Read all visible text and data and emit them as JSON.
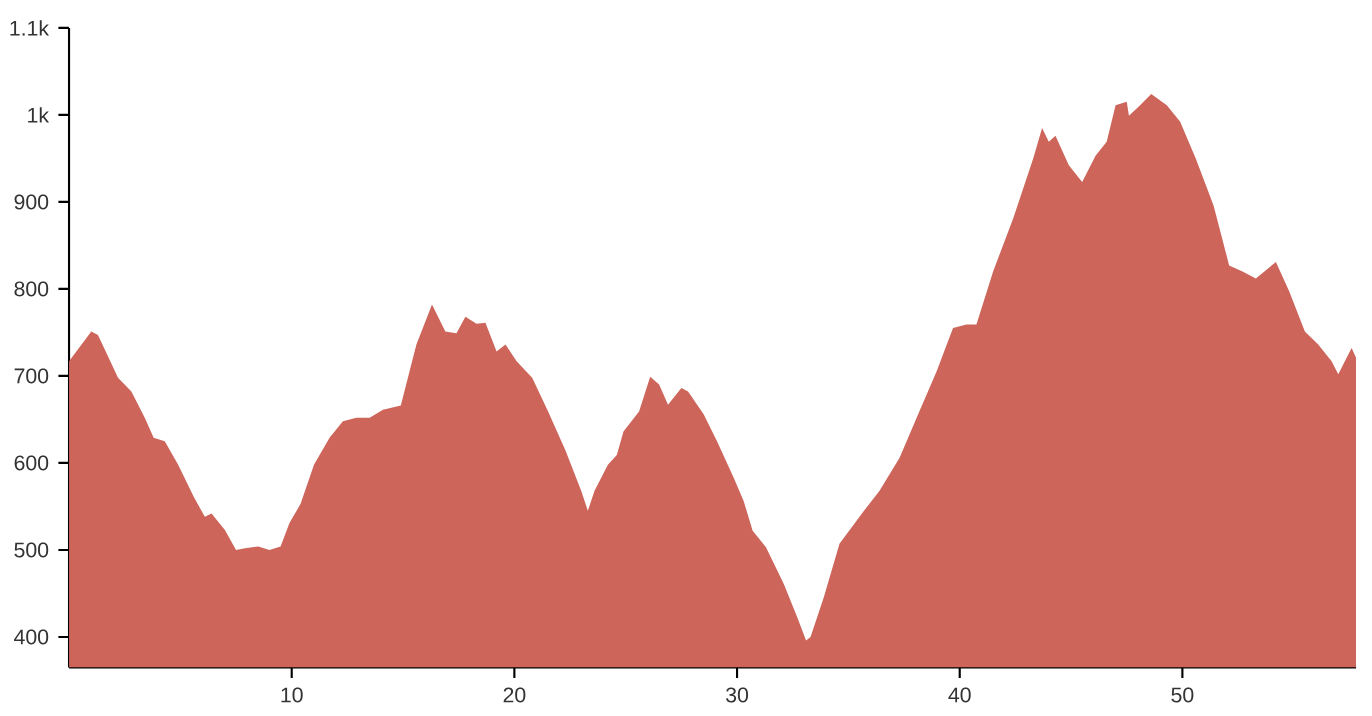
{
  "chart_data": {
    "type": "area",
    "color": "#cd655b",
    "xlim": [
      0,
      57.8
    ],
    "xticks": [
      10,
      20,
      30,
      40,
      50
    ],
    "ylim": [
      365,
      1100
    ],
    "yticks": [
      400,
      500,
      600,
      700,
      800,
      900,
      {
        "value": 1000,
        "label": "1k"
      },
      {
        "value": 1100,
        "label": "1.1k"
      }
    ],
    "grid": false,
    "x": [
      0,
      1.0,
      1.3,
      2.2,
      2.8,
      3.4,
      3.8,
      4.3,
      4.9,
      5.6,
      6.1,
      6.4,
      7.0,
      7.5,
      7.9,
      8.5,
      9.0,
      9.5,
      9.9,
      10.4,
      11.0,
      11.7,
      12.3,
      12.9,
      13.5,
      14.1,
      14.9,
      15.6,
      16.3,
      16.9,
      17.4,
      17.8,
      18.3,
      18.7,
      19.2,
      19.6,
      20.1,
      20.8,
      21.5,
      22.3,
      23.0,
      23.3,
      23.6,
      24.2,
      24.6,
      24.9,
      25.6,
      26.1,
      26.5,
      26.9,
      27.5,
      27.8,
      28.5,
      29.1,
      29.85,
      30.3,
      30.7,
      31.3,
      32.1,
      32.7,
      33.1,
      33.3,
      33.9,
      34.6,
      35.7,
      36.4,
      37.3,
      38.2,
      38.96,
      39.7,
      40.3,
      40.75,
      41.5,
      42.4,
      43.3,
      43.7,
      44.0,
      44.3,
      44.9,
      45.5,
      46.1,
      46.6,
      47.0,
      47.5,
      47.6,
      48.1,
      48.6,
      49.3,
      49.9,
      50.6,
      51.4,
      52.1,
      52.7,
      53.3,
      54.2,
      54.8,
      55.5,
      56.1,
      56.7,
      57.0,
      57.6,
      57.8
    ],
    "values": [
      717,
      751,
      747,
      698,
      682,
      652,
      629,
      625,
      598,
      561,
      538,
      542,
      523,
      500,
      502,
      504,
      500,
      504,
      531,
      553,
      598,
      629,
      648,
      652,
      652,
      661,
      666,
      736,
      782,
      751,
      749,
      768,
      760,
      761,
      728,
      736,
      717,
      698,
      660,
      614,
      568,
      545,
      568,
      598,
      609,
      636,
      659,
      699,
      690,
      667,
      686,
      682,
      656,
      625,
      583,
      556,
      522,
      503,
      461,
      423,
      396,
      400,
      446,
      507,
      545,
      568,
      606,
      660,
      705,
      755,
      759,
      759,
      820,
      881,
      950,
      985,
      969,
      976,
      942,
      923,
      953,
      969,
      1011,
      1015,
      999,
      1011,
      1024,
      1011,
      992,
      950,
      896,
      827,
      820,
      812,
      831,
      797,
      751,
      736,
      717,
      702,
      732,
      721
    ]
  }
}
